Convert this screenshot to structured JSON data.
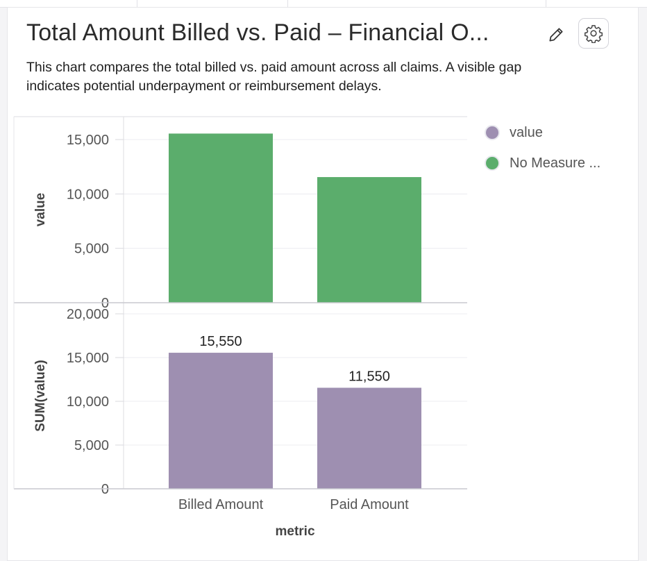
{
  "card": {
    "title": "Total Amount Billed vs. Paid – Financial O...",
    "description": "This chart compares the total billed vs. paid amount across all claims. A visible gap indicates potential underpayment or reimbursement delays.",
    "edit_icon": "pencil-icon",
    "settings_icon": "gear-icon"
  },
  "legend": [
    {
      "label": "value",
      "color": "#9e8fb1"
    },
    {
      "label": "No Measure ...",
      "color": "#5bad6c"
    }
  ],
  "chart_data": [
    {
      "type": "bar",
      "categories": [
        "Billed Amount",
        "Paid Amount"
      ],
      "series": [
        {
          "name": "No Measure ...",
          "values": [
            15550,
            11550
          ],
          "color": "#5bad6c"
        }
      ],
      "ylabel": "value",
      "ylim": [
        0,
        16500
      ],
      "yticks": [
        0,
        5000,
        10000,
        15000
      ],
      "ytick_labels": [
        "0",
        "5,000",
        "10,000",
        "15,000"
      ],
      "data_labels": false,
      "grid": true
    },
    {
      "type": "bar",
      "categories": [
        "Billed Amount",
        "Paid Amount"
      ],
      "series": [
        {
          "name": "value",
          "values": [
            15550,
            11550
          ],
          "color": "#9e8fb1"
        }
      ],
      "ylabel": "SUM(value)",
      "xlabel": "metric",
      "ylim": [
        0,
        20000
      ],
      "yticks": [
        0,
        5000,
        10000,
        15000,
        20000
      ],
      "ytick_labels": [
        "0",
        "5,000",
        "10,000",
        "15,000",
        "20,000"
      ],
      "data_labels": true,
      "data_label_text": [
        "15,550",
        "11,550"
      ],
      "grid": true
    }
  ]
}
